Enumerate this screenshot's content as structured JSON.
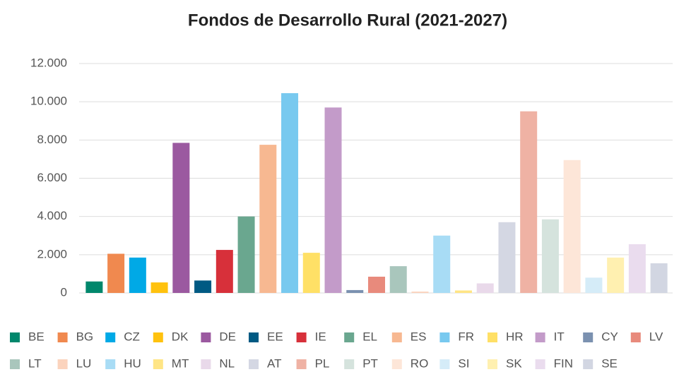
{
  "chart_data": {
    "type": "bar",
    "title": "Fondos de Desarrollo Rural (2021-2027)",
    "categories": [
      "BE",
      "BG",
      "CZ",
      "DK",
      "DE",
      "EE",
      "IE",
      "EL",
      "ES",
      "FR",
      "HR",
      "IT",
      "CY",
      "LV",
      "LT",
      "LU",
      "HU",
      "MT",
      "NL",
      "AT",
      "PL",
      "PT",
      "RO",
      "SI",
      "SK",
      "FIN",
      "SE"
    ],
    "values": [
      600,
      2050,
      1850,
      550,
      7850,
      650,
      2250,
      4000,
      7750,
      10450,
      2100,
      9700,
      150,
      850,
      1400,
      70,
      3000,
      130,
      500,
      3700,
      9500,
      3850,
      6950,
      800,
      1850,
      2550,
      1550
    ],
    "colors": [
      "#00876c",
      "#f0894f",
      "#00a9e6",
      "#ffc20e",
      "#9b59a0",
      "#005a83",
      "#d7303a",
      "#6aa78f",
      "#f7b891",
      "#78c9ef",
      "#ffe066",
      "#c39bc9",
      "#7b91b0",
      "#e88a7c",
      "#a9c6bc",
      "#fbd3bd",
      "#a8dcf5",
      "#ffe585",
      "#e9d9ea",
      "#d4d7e3",
      "#efb2a4",
      "#d5e3dd",
      "#fde6d8",
      "#d5ecf8",
      "#fff0b0",
      "#eadcee",
      "#d2d6e2"
    ],
    "ylim": [
      0,
      12000
    ],
    "yticks": [
      0,
      {
        "value": 2000,
        "label": "2.000"
      },
      {
        "value": 4000,
        "label": "4.000"
      },
      {
        "value": 6000,
        "label": "6.000"
      },
      {
        "value": 8000,
        "label": "8.000"
      },
      {
        "value": 10000,
        "label": "10.000"
      },
      {
        "value": 12000,
        "label": "12.000"
      }
    ],
    "grid": true
  }
}
